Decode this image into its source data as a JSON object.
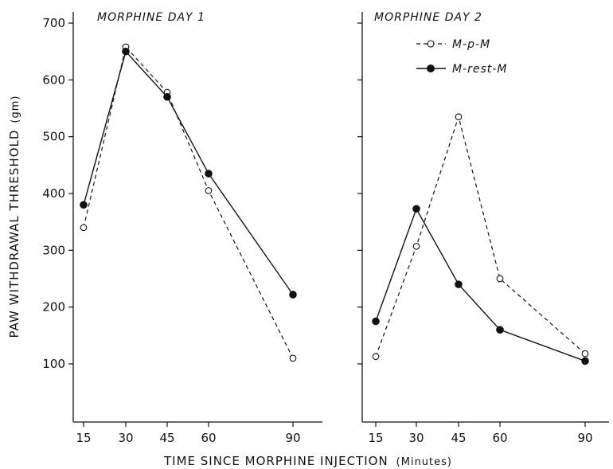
{
  "chart_data": [
    {
      "type": "line",
      "title": "MORPHINE DAY 1",
      "ylabel": "PAW WITHDRAWAL THRESHOLD",
      "ylabel_units": "(gm)",
      "xlabel": "TIME SINCE MORPHINE INJECTION",
      "xlabel_units": "(Minutes)",
      "x": [
        15,
        30,
        45,
        60,
        90
      ],
      "y_ticks": [
        100,
        200,
        300,
        400,
        500,
        600,
        700
      ],
      "ylim": [
        0,
        720
      ],
      "series": [
        {
          "name": "M-p-M",
          "marker": "open-circle",
          "line": "dashed",
          "values": [
            340,
            658,
            578,
            405,
            110
          ]
        },
        {
          "name": "M-rest-M",
          "marker": "filled-circle",
          "line": "solid",
          "values": [
            380,
            650,
            570,
            435,
            222
          ]
        }
      ]
    },
    {
      "type": "line",
      "title": "MORPHINE DAY 2",
      "x": [
        15,
        30,
        45,
        60,
        90
      ],
      "ylim": [
        0,
        720
      ],
      "legend": {
        "position": "top-right",
        "entries": [
          "M-p-M",
          "M-rest-M"
        ]
      },
      "series": [
        {
          "name": "M-p-M",
          "marker": "open-circle",
          "line": "dashed",
          "values": [
            113,
            307,
            535,
            250,
            118
          ]
        },
        {
          "name": "M-rest-M",
          "marker": "filled-circle",
          "line": "solid",
          "values": [
            175,
            373,
            240,
            160,
            105
          ]
        }
      ]
    }
  ],
  "legend_labels": {
    "open": "M-p-M",
    "filled": "M-rest-M"
  }
}
